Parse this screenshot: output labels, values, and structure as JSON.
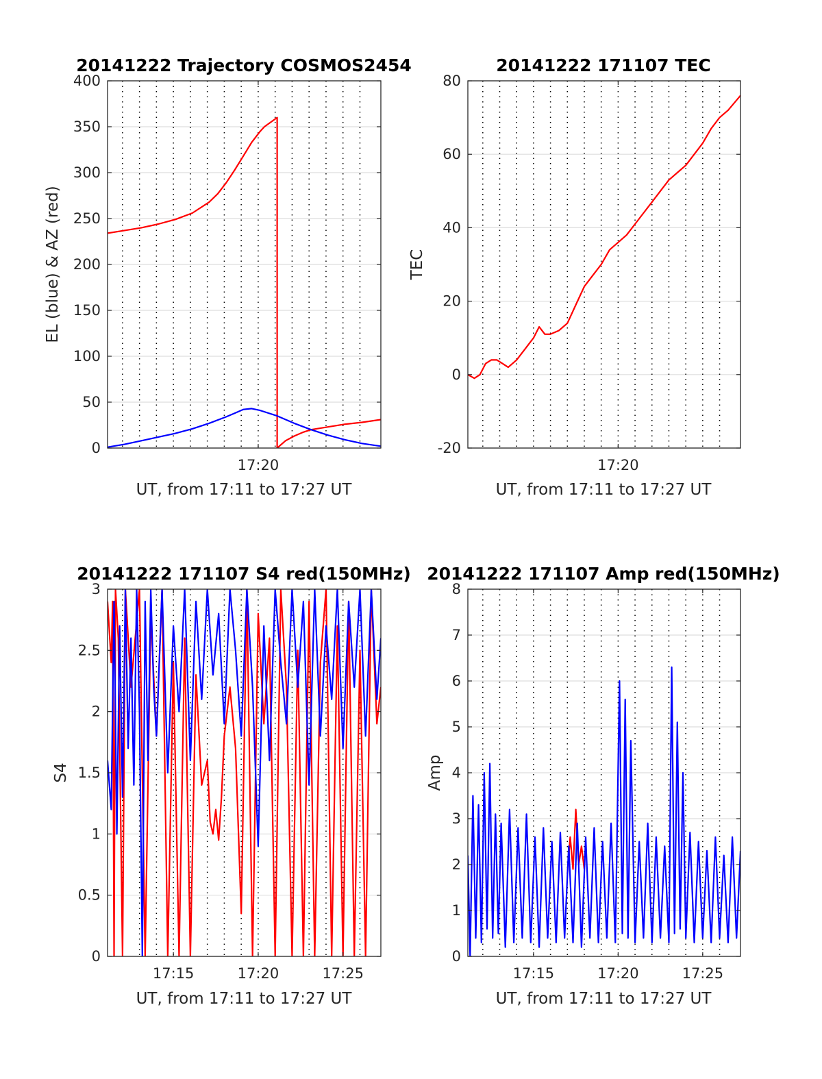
{
  "colors": {
    "el_series": "#0000ff",
    "az_series": "#ff0000",
    "grid_solid": "#dedede",
    "grid_dotted": "#000000",
    "axes": "#262626"
  },
  "chart_data": [
    {
      "type": "line",
      "title": "20141222 Trajectory COSMOS2454",
      "xlabel": "UT, from 17:11 to 17:27 UT",
      "ylabel": "EL (blue) & AZ (red)",
      "xlim": [
        "17:11:07",
        "17:27:14"
      ],
      "ylim": [
        0,
        400
      ],
      "yticks": [
        "0",
        "50",
        "100",
        "150",
        "200",
        "250",
        "300",
        "350",
        "400"
      ],
      "xticks": [
        {
          "t": "17:20:00",
          "label": "17:20"
        }
      ],
      "minor_grid_minutes": [
        "17:12",
        "17:13",
        "17:14",
        "17:15",
        "17:16",
        "17:17",
        "17:18",
        "17:19",
        "17:20",
        "17:21",
        "17:22",
        "17:23",
        "17:24",
        "17:25",
        "17:26"
      ],
      "grid": true,
      "series": [
        {
          "color": "#ff0000",
          "x": [
            "17:11:07",
            "17:12:07",
            "17:13:07",
            "17:14:07",
            "17:15:07",
            "17:16:07",
            "17:17:07",
            "17:17:37",
            "17:18:07",
            "17:18:37",
            "17:19:07",
            "17:19:37",
            "17:20:07",
            "17:20:22",
            "17:21:07",
            "17:21:07",
            "17:21:37",
            "17:22:07",
            "17:22:37",
            "17:23:07",
            "17:24:07",
            "17:25:07",
            "17:26:07",
            "17:27:14"
          ],
          "y": [
            234,
            237,
            240,
            244,
            249,
            256,
            268,
            277,
            289,
            303,
            318,
            333,
            345,
            350,
            360,
            0,
            8,
            13,
            17,
            20,
            23,
            26,
            28,
            31
          ]
        },
        {
          "color": "#0000ff",
          "x": [
            "17:11:07",
            "17:12:07",
            "17:13:07",
            "17:14:07",
            "17:15:07",
            "17:16:07",
            "17:17:07",
            "17:18:07",
            "17:18:37",
            "17:19:07",
            "17:19:37",
            "17:20:07",
            "17:21:07",
            "17:22:07",
            "17:23:07",
            "17:24:07",
            "17:25:07",
            "17:26:07",
            "17:27:14"
          ],
          "y": [
            1,
            4,
            8,
            12,
            16,
            21,
            27,
            34,
            38,
            42,
            43,
            41,
            35,
            27,
            20,
            14,
            9,
            5,
            2
          ]
        }
      ]
    },
    {
      "type": "line",
      "title": "20141222 171107 TEC",
      "xlabel": "UT, from 17:11 to 17:27 UT",
      "ylabel": "TEC",
      "xlim": [
        "17:11:07",
        "17:27:14"
      ],
      "ylim": [
        -20,
        80
      ],
      "yticks": [
        "-20",
        "0",
        "20",
        "40",
        "60",
        "80"
      ],
      "xticks": [
        {
          "t": "17:20:00",
          "label": "17:20"
        }
      ],
      "minor_grid_minutes": [
        "17:12",
        "17:13",
        "17:14",
        "17:15",
        "17:16",
        "17:17",
        "17:18",
        "17:19",
        "17:20",
        "17:21",
        "17:22",
        "17:23",
        "17:24",
        "17:25",
        "17:26"
      ],
      "grid": true,
      "series": [
        {
          "color": "#ff0000",
          "x": [
            "17:11:07",
            "17:11:30",
            "17:11:50",
            "17:12:10",
            "17:12:30",
            "17:12:50",
            "17:13:10",
            "17:13:30",
            "17:14:00",
            "17:14:30",
            "17:15:00",
            "17:15:20",
            "17:15:40",
            "17:16:00",
            "17:16:30",
            "17:17:00",
            "17:17:30",
            "17:18:00",
            "17:18:30",
            "17:19:00",
            "17:19:30",
            "17:20:00",
            "17:20:30",
            "17:21:00",
            "17:21:30",
            "17:22:00",
            "17:22:30",
            "17:23:00",
            "17:23:30",
            "17:24:00",
            "17:24:30",
            "17:25:00",
            "17:25:30",
            "17:26:00",
            "17:26:30",
            "17:27:14"
          ],
          "y": [
            0,
            -1,
            0,
            3,
            4,
            4,
            3,
            2,
            4,
            7,
            10,
            13,
            11,
            11,
            12,
            14,
            19,
            24,
            27,
            30,
            34,
            36,
            38,
            41,
            44,
            47,
            50,
            53,
            55,
            57,
            60,
            63,
            67,
            70,
            72,
            76
          ]
        }
      ]
    },
    {
      "type": "line",
      "title": "20141222 171107 S4 red(150MHz)",
      "xlabel": "UT, from 17:11 to 17:27 UT",
      "ylabel": "S4",
      "xlim": [
        "17:11:07",
        "17:27:14"
      ],
      "ylim": [
        0,
        3
      ],
      "yticks": [
        "0",
        "0.5",
        "1",
        "1.5",
        "2",
        "2.5",
        "3"
      ],
      "xticks": [
        {
          "t": "17:15:00",
          "label": "17:15"
        },
        {
          "t": "17:20:00",
          "label": "17:20"
        },
        {
          "t": "17:25:00",
          "label": "17:25"
        }
      ],
      "minor_grid_minutes": [
        "17:12",
        "17:13",
        "17:14",
        "17:15",
        "17:16",
        "17:17",
        "17:18",
        "17:19",
        "17:20",
        "17:21",
        "17:22",
        "17:23",
        "17:24",
        "17:25",
        "17:26"
      ],
      "grid": true,
      "series": [
        {
          "color": "#ff0000",
          "x": [
            "17:11:07",
            "17:11:20",
            "17:11:25",
            "17:11:30",
            "17:11:35",
            "17:11:45",
            "17:12:00",
            "17:12:10",
            "17:12:15",
            "17:12:30",
            "17:13:00",
            "17:13:20",
            "17:13:40",
            "17:14:00",
            "17:14:20",
            "17:14:40",
            "17:15:00",
            "17:15:20",
            "17:15:40",
            "17:16:00",
            "17:16:20",
            "17:16:40",
            "17:17:00",
            "17:17:10",
            "17:17:20",
            "17:17:30",
            "17:17:40",
            "17:17:50",
            "17:18:00",
            "17:18:20",
            "17:18:40",
            "17:19:00",
            "17:19:20",
            "17:19:40",
            "17:20:00",
            "17:20:20",
            "17:20:40",
            "17:21:00",
            "17:21:20",
            "17:21:40",
            "17:22:00",
            "17:22:20",
            "17:22:40",
            "17:23:00",
            "17:23:20",
            "17:23:40",
            "17:24:00",
            "17:24:20",
            "17:24:40",
            "17:25:00",
            "17:25:20",
            "17:25:40",
            "17:26:00",
            "17:26:20",
            "17:26:40",
            "17:27:00",
            "17:27:14"
          ],
          "y": [
            2.9,
            2.4,
            2.9,
            0,
            3,
            2.6,
            0,
            3,
            2.8,
            2.2,
            3,
            0,
            2.8,
            1.8,
            3,
            0,
            2.4,
            0,
            2.6,
            0,
            2.3,
            1.4,
            1.6,
            1.1,
            1.0,
            1.2,
            0.95,
            1.3,
            1.8,
            2.2,
            1.7,
            0.35,
            3,
            0,
            2.8,
            1.9,
            2.6,
            0,
            3,
            2.2,
            0,
            2.5,
            0,
            2.9,
            0,
            2.4,
            3,
            0,
            2.7,
            0,
            2.9,
            0,
            2.5,
            0,
            3,
            1.9,
            2.2
          ]
        },
        {
          "color": "#0000ff",
          "x": [
            "17:11:07",
            "17:11:20",
            "17:11:30",
            "17:11:40",
            "17:11:50",
            "17:12:00",
            "17:12:10",
            "17:12:20",
            "17:12:30",
            "17:12:40",
            "17:12:50",
            "17:13:00",
            "17:13:10",
            "17:13:20",
            "17:13:30",
            "17:13:40",
            "17:13:50",
            "17:14:00",
            "17:14:20",
            "17:14:40",
            "17:15:00",
            "17:15:20",
            "17:15:40",
            "17:16:00",
            "17:16:20",
            "17:16:40",
            "17:17:00",
            "17:17:20",
            "17:17:40",
            "17:18:00",
            "17:18:20",
            "17:18:40",
            "17:19:00",
            "17:19:20",
            "17:19:40",
            "17:20:00",
            "17:20:20",
            "17:20:40",
            "17:21:00",
            "17:21:20",
            "17:21:40",
            "17:22:00",
            "17:22:20",
            "17:22:40",
            "17:23:00",
            "17:23:20",
            "17:23:40",
            "17:24:00",
            "17:24:20",
            "17:24:40",
            "17:25:00",
            "17:25:20",
            "17:25:40",
            "17:26:00",
            "17:26:20",
            "17:26:40",
            "17:27:00",
            "17:27:14"
          ],
          "y": [
            1.6,
            1.2,
            2.9,
            1.0,
            2.7,
            1.3,
            3,
            1.7,
            2.6,
            1.4,
            3,
            2.0,
            0,
            2.9,
            1.6,
            3,
            2.2,
            1.8,
            3,
            1.5,
            2.7,
            2.0,
            3,
            1.6,
            2.9,
            2.1,
            3,
            2.3,
            2.8,
            1.9,
            3,
            2.5,
            1.8,
            3,
            2.2,
            0.9,
            2.7,
            1.6,
            3,
            2.4,
            1.9,
            3,
            2.2,
            2.9,
            1.4,
            3,
            1.8,
            2.7,
            2.1,
            3,
            1.7,
            2.9,
            2.2,
            3,
            1.8,
            3,
            2.1,
            2.6
          ]
        }
      ]
    },
    {
      "type": "line",
      "title": "20141222 171107 Amp red(150MHz)",
      "xlabel": "UT, from 17:11 to 17:27 UT",
      "ylabel": "Amp",
      "xlim": [
        "17:11:07",
        "17:27:14"
      ],
      "ylim": [
        0,
        8
      ],
      "yticks": [
        "0",
        "1",
        "2",
        "3",
        "4",
        "5",
        "6",
        "7",
        "8"
      ],
      "xticks": [
        {
          "t": "17:15:00",
          "label": "17:15"
        },
        {
          "t": "17:20:00",
          "label": "17:20"
        },
        {
          "t": "17:25:00",
          "label": "17:25"
        }
      ],
      "minor_grid_minutes": [
        "17:12",
        "17:13",
        "17:14",
        "17:15",
        "17:16",
        "17:17",
        "17:18",
        "17:19",
        "17:20",
        "17:21",
        "17:22",
        "17:23",
        "17:24",
        "17:25",
        "17:26"
      ],
      "grid": true,
      "series": [
        {
          "color": "#ff0000",
          "x": [
            "17:17:00",
            "17:17:10",
            "17:17:20",
            "17:17:30",
            "17:17:40",
            "17:17:50",
            "17:18:00"
          ],
          "y": [
            1.8,
            2.6,
            1.9,
            3.2,
            2.0,
            2.4,
            1.9
          ]
        },
        {
          "color": "#0000ff",
          "x": [
            "17:11:07",
            "17:11:15",
            "17:11:25",
            "17:11:35",
            "17:11:45",
            "17:11:55",
            "17:12:05",
            "17:12:15",
            "17:12:25",
            "17:12:35",
            "17:12:45",
            "17:12:55",
            "17:13:05",
            "17:13:20",
            "17:13:35",
            "17:13:50",
            "17:14:05",
            "17:14:20",
            "17:14:35",
            "17:14:50",
            "17:15:05",
            "17:15:20",
            "17:15:35",
            "17:15:50",
            "17:16:05",
            "17:16:20",
            "17:16:35",
            "17:16:50",
            "17:17:05",
            "17:17:20",
            "17:17:35",
            "17:17:50",
            "17:18:05",
            "17:18:20",
            "17:18:35",
            "17:18:50",
            "17:19:05",
            "17:19:20",
            "17:19:35",
            "17:19:50",
            "17:20:05",
            "17:20:15",
            "17:20:25",
            "17:20:35",
            "17:20:45",
            "17:21:00",
            "17:21:15",
            "17:21:30",
            "17:21:45",
            "17:22:00",
            "17:22:15",
            "17:22:30",
            "17:22:45",
            "17:23:00",
            "17:23:10",
            "17:23:20",
            "17:23:30",
            "17:23:40",
            "17:23:50",
            "17:24:00",
            "17:24:15",
            "17:24:30",
            "17:24:45",
            "17:25:00",
            "17:25:15",
            "17:25:30",
            "17:25:45",
            "17:26:00",
            "17:26:15",
            "17:26:30",
            "17:26:45",
            "17:27:00",
            "17:27:14"
          ],
          "y": [
            2.2,
            0,
            3.5,
            0.4,
            3.3,
            0.3,
            4.0,
            0.6,
            4.2,
            0.4,
            3.1,
            0.5,
            2.9,
            0.2,
            3.2,
            0.3,
            2.8,
            0.4,
            3.1,
            0.3,
            2.6,
            0.2,
            2.8,
            0.4,
            2.5,
            0.3,
            2.7,
            0.4,
            2.4,
            0.3,
            2.9,
            0.2,
            2.6,
            0.4,
            2.8,
            0.3,
            2.5,
            0.4,
            2.9,
            0.3,
            6.0,
            0.5,
            5.6,
            0.4,
            4.7,
            0.3,
            2.5,
            0.4,
            2.9,
            0.3,
            2.6,
            0.4,
            2.4,
            0.3,
            6.3,
            0.5,
            5.1,
            0.6,
            4.0,
            0.4,
            2.7,
            0.3,
            2.5,
            0.4,
            2.3,
            0.3,
            2.6,
            0.4,
            2.2,
            0.3,
            2.6,
            0.4,
            2.3
          ]
        }
      ]
    }
  ]
}
